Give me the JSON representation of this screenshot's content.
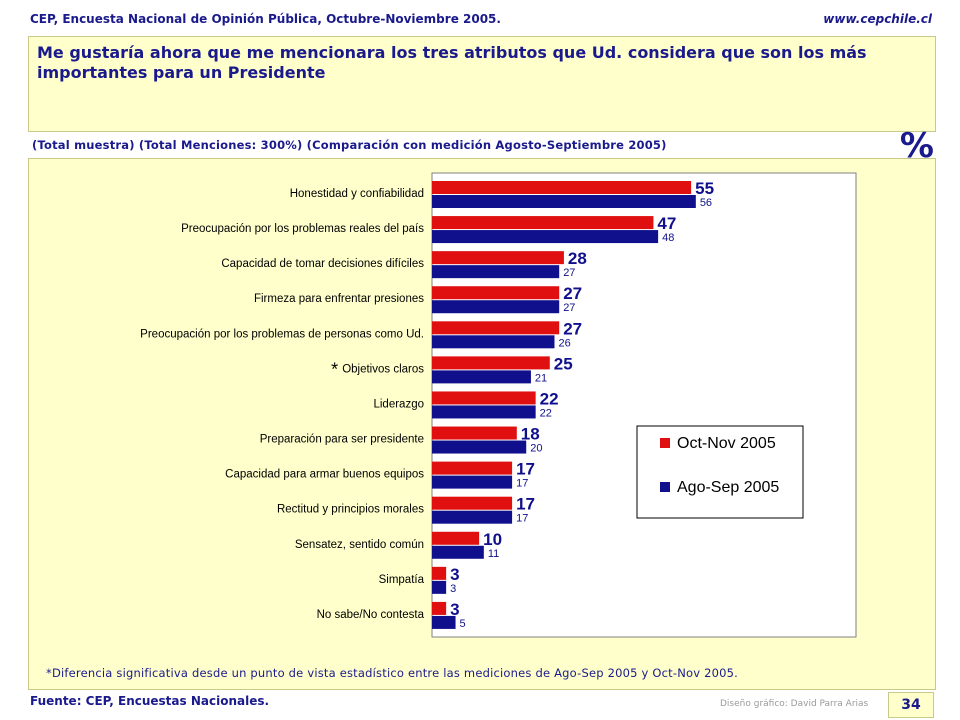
{
  "header": {
    "source_title": "CEP, Encuesta Nacional de Opinión Pública, Octubre-Noviembre 2005.",
    "website": "www.cepchile.cl"
  },
  "question": "Me gustaría ahora que me mencionara los tres atributos que Ud. considera que son los más importantes para un Presidente",
  "subtitle": "(Total muestra) (Total Menciones: 300%) (Comparación con medición Agosto-Septiembre 2005)",
  "unit_symbol": "%",
  "footnote": "*Diferencia significativa desde un punto de vista estadístico entre las mediciones de Ago-Sep 2005 y Oct-Nov 2005.",
  "footer": {
    "source": "Fuente: CEP, Encuestas Nacionales.",
    "credit": "Diseño gráfico: David Parra Arias",
    "page_number": "34"
  },
  "chart_data": {
    "type": "bar",
    "orientation": "horizontal",
    "categories": [
      "Honestidad y confiabilidad",
      "Preocupación por los problemas reales del país",
      "Capacidad de tomar decisiones difíciles",
      "Firmeza para enfrentar presiones",
      "Preocupación por los problemas de personas como Ud.",
      "Objetivos claros",
      "Liderazgo",
      "Preparación para ser presidente",
      "Capacidad para armar buenos equipos",
      "Rectitud y principios morales",
      "Sensatez, sentido común",
      "Simpatía",
      "No sabe/No contesta"
    ],
    "significance_marker": "*",
    "significant_categories": [
      5
    ],
    "series": [
      {
        "name": "Oct-Nov 2005",
        "color": "#e01010",
        "values": [
          55,
          47,
          28,
          27,
          27,
          25,
          22,
          18,
          17,
          17,
          10,
          3,
          3
        ]
      },
      {
        "name": "Ago-Sep 2005",
        "color": "#10108c",
        "values": [
          56,
          48,
          27,
          27,
          26,
          21,
          22,
          20,
          17,
          17,
          11,
          3,
          5
        ]
      }
    ],
    "xlim": [
      0,
      90
    ],
    "grid": false,
    "legend_position": "bottom-right"
  }
}
